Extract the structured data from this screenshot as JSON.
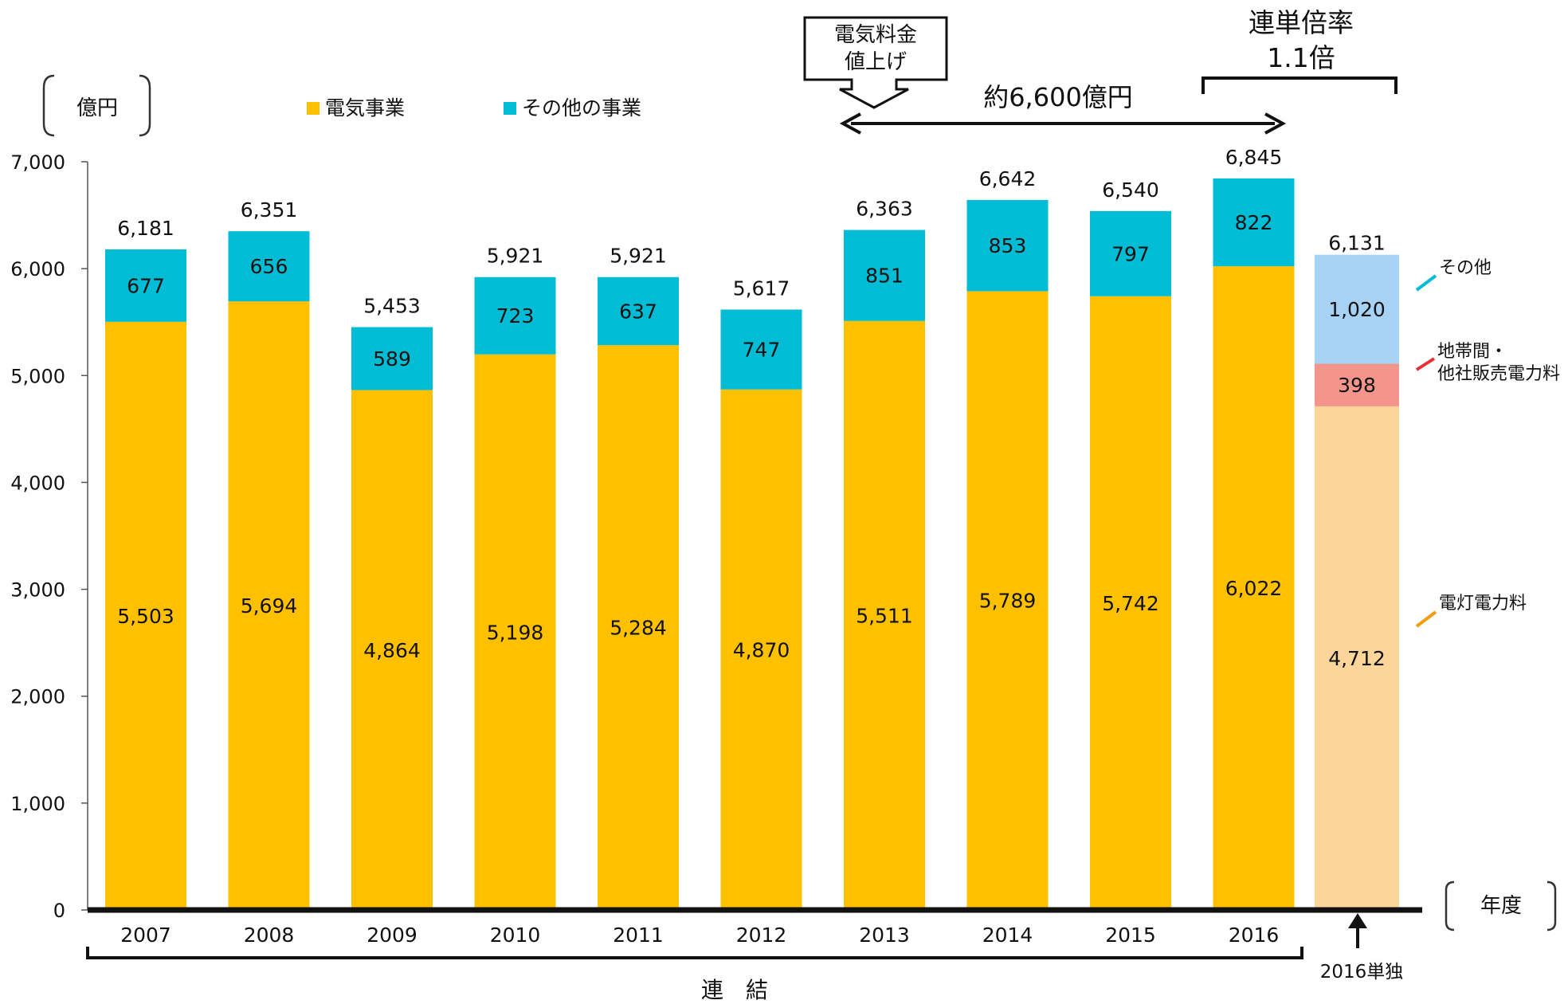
{
  "colors": {
    "electric": "#ffc000",
    "other": "#00bcd4",
    "standalone_light": "#fcd59a",
    "standalone_mid": "#f4958c",
    "standalone_top": "#a6d3f5",
    "label_other": "#18a8e0",
    "label_mid": "#e8303a",
    "label_light": "#f39c12",
    "connector_other": "#00bcd4",
    "connector_mid": "#e8303a",
    "connector_light": "#f39c12"
  },
  "chart_data": {
    "type": "bar",
    "stacked": true,
    "unit": "億円",
    "xlabel": "年度",
    "ylim": [
      0,
      7000
    ],
    "yticks": [
      "0",
      "1,000",
      "2,000",
      "3,000",
      "4,000",
      "5,000",
      "6,000",
      "7,000"
    ],
    "legend": {
      "position": "top",
      "items": [
        "電気事業",
        "その他の事業"
      ]
    },
    "categories": [
      "2007",
      "2008",
      "2009",
      "2010",
      "2011",
      "2012",
      "2013",
      "2014",
      "2015",
      "2016"
    ],
    "series": [
      {
        "name": "電気事業",
        "values": [
          5503,
          5694,
          4864,
          5198,
          5284,
          4870,
          5511,
          5789,
          5742,
          6022
        ],
        "labels": [
          "5,503",
          "5,694",
          "4,864",
          "5,198",
          "5,284",
          "4,870",
          "5,511",
          "5,789",
          "5,742",
          "6,022"
        ]
      },
      {
        "name": "その他の事業",
        "values": [
          677,
          656,
          589,
          723,
          637,
          747,
          851,
          853,
          797,
          822
        ],
        "labels": [
          "677",
          "656",
          "589",
          "723",
          "637",
          "747",
          "851",
          "853",
          "797",
          "822"
        ]
      }
    ],
    "totals": [
      6181,
      6351,
      5453,
      5921,
      5921,
      5617,
      6363,
      6642,
      6540,
      6845
    ],
    "total_labels": [
      "6,181",
      "6,351",
      "5,453",
      "5,921",
      "5,921",
      "5,617",
      "6,363",
      "6,642",
      "6,540",
      "6,845"
    ],
    "standalone": {
      "category": "2016単独",
      "total": 6131,
      "total_label": "6,131",
      "segments": [
        {
          "name": "電灯電力料",
          "value": 4712,
          "label": "4,712"
        },
        {
          "name": "地帯間・他社販売電力料",
          "label_lines": [
            "地帯間・",
            "他社販売電力料"
          ],
          "value": 398,
          "label": "398"
        },
        {
          "name": "その他",
          "value": 1020,
          "label": "1,020"
        }
      ]
    },
    "annotations": {
      "price_box_lines": [
        "電気料金",
        "値上げ"
      ],
      "range_label": "約6,600億円",
      "ratio_lines": [
        "連単倍率",
        "1.1倍"
      ],
      "consolidated_label": "連　結"
    }
  }
}
